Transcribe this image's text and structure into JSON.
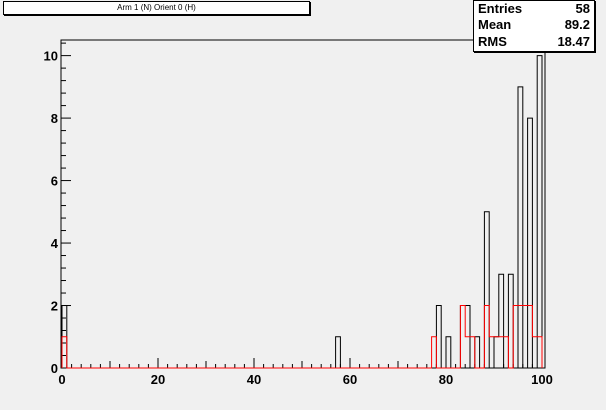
{
  "title": "Arm 1 (N) Orient 0 (H)",
  "stats": [
    {
      "label": "Entries",
      "value": "58"
    },
    {
      "label": "Mean",
      "value": "89.2"
    },
    {
      "label": "RMS",
      "value": "18.47"
    }
  ],
  "colors": {
    "primary": "#000000",
    "secondary": "#ff0000",
    "pad": "#f0f0f0"
  },
  "chart_data": {
    "type": "histogram",
    "title": "Arm 1 (N) Orient 0 (H)",
    "xlim": [
      0,
      100
    ],
    "ylim": [
      0,
      10.5
    ],
    "x_ticks": [
      "0",
      "20",
      "40",
      "60",
      "80",
      "100"
    ],
    "y_ticks": [
      "0",
      "2",
      "4",
      "6",
      "8",
      "10"
    ],
    "bin_width": 1,
    "series": [
      {
        "color": "#000000",
        "bins": [
          [
            0,
            2
          ],
          [
            57,
            1
          ],
          [
            78,
            2
          ],
          [
            80,
            1
          ],
          [
            83,
            2
          ],
          [
            84,
            2
          ],
          [
            86,
            1
          ],
          [
            88,
            5
          ],
          [
            90,
            1
          ],
          [
            91,
            3
          ],
          [
            93,
            3
          ],
          [
            95,
            9
          ],
          [
            97,
            8
          ],
          [
            99,
            10
          ]
        ]
      },
      {
        "color": "#ff0000",
        "bins": [
          [
            0,
            1
          ],
          [
            77,
            1
          ],
          [
            83,
            2
          ],
          [
            84,
            1
          ],
          [
            85,
            1
          ],
          [
            88,
            2
          ],
          [
            89,
            1
          ],
          [
            90,
            1
          ],
          [
            91,
            1
          ],
          [
            92,
            1
          ],
          [
            94,
            2
          ],
          [
            95,
            2
          ],
          [
            96,
            2
          ],
          [
            97,
            2
          ],
          [
            98,
            1
          ],
          [
            99,
            1
          ]
        ]
      }
    ]
  }
}
